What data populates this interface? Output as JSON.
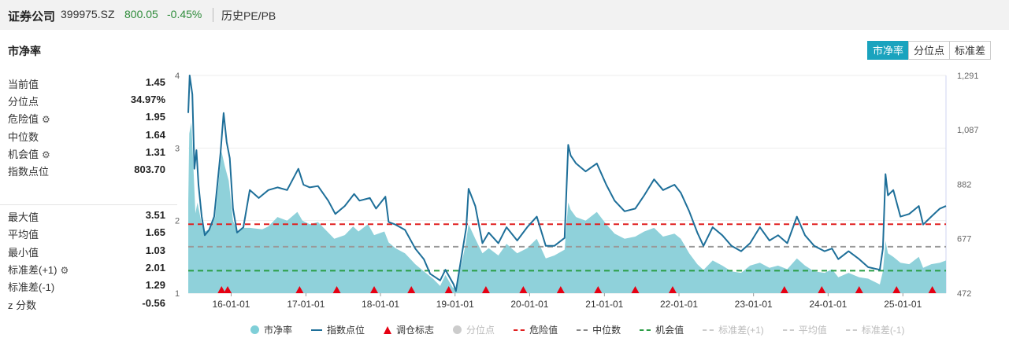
{
  "header": {
    "name": "证券公司",
    "code": "399975.SZ",
    "price": "800.05",
    "change": "-0.45%",
    "link": "历史PE/PB"
  },
  "section_title": "市净率",
  "tabs": [
    {
      "label": "市净率",
      "active": true
    },
    {
      "label": "分位点",
      "active": false
    },
    {
      "label": "标准差",
      "active": false
    }
  ],
  "stats_top": [
    {
      "label": "当前值",
      "value": "1.45",
      "gear": false
    },
    {
      "label": "分位点",
      "value": "34.97%",
      "gear": false
    },
    {
      "label": "危险值",
      "value": "1.95",
      "gear": true
    },
    {
      "label": "中位数",
      "value": "1.64",
      "gear": false
    },
    {
      "label": "机会值",
      "value": "1.31",
      "gear": true
    },
    {
      "label": "指数点位",
      "value": "803.70",
      "gear": false
    }
  ],
  "stats_bottom": [
    {
      "label": "最大值",
      "value": "3.51",
      "gear": false
    },
    {
      "label": "平均值",
      "value": "1.65",
      "gear": false
    },
    {
      "label": "最小值",
      "value": "1.03",
      "gear": false
    },
    {
      "label": "标准差(+1)",
      "value": "2.01",
      "gear": true
    },
    {
      "label": "标准差(-1)",
      "value": "1.29",
      "gear": false
    },
    {
      "label": "z 分数",
      "value": "-0.56",
      "gear": false
    }
  ],
  "colors": {
    "pb_fill": "#8fd1da",
    "index_line": "#1e6f99",
    "danger": "#e02020",
    "median": "#999999",
    "opportunity": "#2a9d45",
    "marker": "#e60012",
    "accent": "#1aa3be",
    "green_text": "#2e8b3a"
  },
  "chart_data": {
    "type": "line",
    "x_ticks": [
      "16-01-01",
      "17-01-01",
      "18-01-01",
      "19-01-01",
      "20-01-01",
      "21-01-01",
      "22-01-01",
      "23-01-01",
      "24-01-01",
      "25-01-01"
    ],
    "y_left_ticks": [
      "1",
      "2",
      "3",
      "4"
    ],
    "y_left_range": [
      1,
      4
    ],
    "y_right_ticks": [
      "472",
      "677",
      "882",
      "1,087",
      "1,291"
    ],
    "y_right_range": [
      472,
      1291
    ],
    "x_range": [
      "2015-06-05",
      "2025-07-31"
    ],
    "reference_lines": {
      "danger": 1.95,
      "median": 1.64,
      "opportunity": 1.31
    },
    "series": [
      {
        "name": "市净率",
        "axis": "left",
        "points": [
          [
            "2015-06-05",
            2.25
          ],
          [
            "2015-06-10",
            3.2
          ],
          [
            "2015-06-20",
            3.35
          ],
          [
            "2015-07-01",
            2.7
          ],
          [
            "2015-07-10",
            2.1
          ],
          [
            "2015-07-20",
            2.25
          ],
          [
            "2015-08-10",
            1.95
          ],
          [
            "2015-08-25",
            1.85
          ],
          [
            "2015-09-15",
            1.88
          ],
          [
            "2015-10-15",
            2.05
          ],
          [
            "2015-11-15",
            2.95
          ],
          [
            "2015-12-01",
            2.75
          ],
          [
            "2015-12-20",
            2.55
          ],
          [
            "2016-01-10",
            2.0
          ],
          [
            "2016-02-01",
            1.85
          ],
          [
            "2016-03-01",
            1.9
          ],
          [
            "2016-04-01",
            1.9
          ],
          [
            "2016-06-01",
            1.88
          ],
          [
            "2016-07-01",
            1.92
          ],
          [
            "2016-08-15",
            2.05
          ],
          [
            "2016-10-01",
            2.0
          ],
          [
            "2016-11-20",
            2.12
          ],
          [
            "2016-12-15",
            2.0
          ],
          [
            "2017-01-20",
            1.95
          ],
          [
            "2017-03-01",
            1.98
          ],
          [
            "2017-04-15",
            1.85
          ],
          [
            "2017-05-20",
            1.75
          ],
          [
            "2017-07-10",
            1.8
          ],
          [
            "2017-08-20",
            1.92
          ],
          [
            "2017-09-15",
            1.85
          ],
          [
            "2017-11-01",
            1.95
          ],
          [
            "2017-12-01",
            1.8
          ],
          [
            "2018-01-20",
            1.85
          ],
          [
            "2018-02-10",
            1.7
          ],
          [
            "2018-03-15",
            1.62
          ],
          [
            "2018-05-01",
            1.55
          ],
          [
            "2018-06-20",
            1.4
          ],
          [
            "2018-08-01",
            1.3
          ],
          [
            "2018-09-15",
            1.2
          ],
          [
            "2018-10-20",
            1.1
          ],
          [
            "2018-11-15",
            1.25
          ],
          [
            "2018-12-20",
            1.08
          ],
          [
            "2019-01-05",
            1.05
          ],
          [
            "2019-02-20",
            1.65
          ],
          [
            "2019-03-08",
            1.95
          ],
          [
            "2019-04-10",
            1.75
          ],
          [
            "2019-05-15",
            1.55
          ],
          [
            "2019-06-15",
            1.62
          ],
          [
            "2019-08-01",
            1.52
          ],
          [
            "2019-09-10",
            1.68
          ],
          [
            "2019-11-01",
            1.55
          ],
          [
            "2019-12-20",
            1.62
          ],
          [
            "2020-02-05",
            1.75
          ],
          [
            "2020-03-20",
            1.48
          ],
          [
            "2020-05-01",
            1.52
          ],
          [
            "2020-06-20",
            1.6
          ],
          [
            "2020-07-08",
            2.25
          ],
          [
            "2020-07-20",
            2.15
          ],
          [
            "2020-08-15",
            2.05
          ],
          [
            "2020-10-01",
            2.0
          ],
          [
            "2020-11-25",
            2.12
          ],
          [
            "2021-01-10",
            1.95
          ],
          [
            "2021-02-20",
            1.82
          ],
          [
            "2021-04-10",
            1.75
          ],
          [
            "2021-06-01",
            1.78
          ],
          [
            "2021-07-15",
            1.85
          ],
          [
            "2021-09-01",
            1.9
          ],
          [
            "2021-10-15",
            1.78
          ],
          [
            "2021-12-10",
            1.82
          ],
          [
            "2022-01-10",
            1.75
          ],
          [
            "2022-02-20",
            1.55
          ],
          [
            "2022-04-01",
            1.4
          ],
          [
            "2022-05-01",
            1.32
          ],
          [
            "2022-06-15",
            1.45
          ],
          [
            "2022-08-01",
            1.38
          ],
          [
            "2022-09-15",
            1.3
          ],
          [
            "2022-11-01",
            1.28
          ],
          [
            "2022-12-15",
            1.38
          ],
          [
            "2023-02-01",
            1.42
          ],
          [
            "2023-03-20",
            1.35
          ],
          [
            "2023-05-01",
            1.38
          ],
          [
            "2023-06-15",
            1.33
          ],
          [
            "2023-08-01",
            1.48
          ],
          [
            "2023-09-10",
            1.38
          ],
          [
            "2023-10-25",
            1.3
          ],
          [
            "2023-12-15",
            1.28
          ],
          [
            "2024-01-20",
            1.33
          ],
          [
            "2024-02-20",
            1.22
          ],
          [
            "2024-04-10",
            1.28
          ],
          [
            "2024-06-01",
            1.22
          ],
          [
            "2024-07-15",
            1.2
          ],
          [
            "2024-09-10",
            1.12
          ],
          [
            "2024-09-25",
            1.3
          ],
          [
            "2024-10-08",
            1.72
          ],
          [
            "2024-10-20",
            1.55
          ],
          [
            "2024-11-15",
            1.5
          ],
          [
            "2024-12-20",
            1.42
          ],
          [
            "2025-02-01",
            1.4
          ],
          [
            "2025-03-20",
            1.5
          ],
          [
            "2025-04-10",
            1.35
          ],
          [
            "2025-05-20",
            1.4
          ],
          [
            "2025-07-01",
            1.42
          ],
          [
            "2025-07-31",
            1.45
          ]
        ]
      },
      {
        "name": "指数点位",
        "axis": "right",
        "points": [
          [
            "2015-06-05",
            1150
          ],
          [
            "2015-06-12",
            1291
          ],
          [
            "2015-06-25",
            1220
          ],
          [
            "2015-07-05",
            940
          ],
          [
            "2015-07-15",
            1010
          ],
          [
            "2015-07-25",
            880
          ],
          [
            "2015-08-10",
            760
          ],
          [
            "2015-08-25",
            690
          ],
          [
            "2015-09-15",
            710
          ],
          [
            "2015-10-10",
            760
          ],
          [
            "2015-11-10",
            1000
          ],
          [
            "2015-11-25",
            1150
          ],
          [
            "2015-12-10",
            1040
          ],
          [
            "2015-12-25",
            980
          ],
          [
            "2016-01-10",
            790
          ],
          [
            "2016-01-30",
            700
          ],
          [
            "2016-03-01",
            720
          ],
          [
            "2016-04-01",
            860
          ],
          [
            "2016-05-15",
            830
          ],
          [
            "2016-07-01",
            860
          ],
          [
            "2016-08-15",
            870
          ],
          [
            "2016-10-01",
            860
          ],
          [
            "2016-11-25",
            940
          ],
          [
            "2016-12-20",
            880
          ],
          [
            "2017-01-20",
            870
          ],
          [
            "2017-03-01",
            875
          ],
          [
            "2017-04-20",
            820
          ],
          [
            "2017-05-25",
            770
          ],
          [
            "2017-07-10",
            800
          ],
          [
            "2017-08-25",
            845
          ],
          [
            "2017-09-20",
            820
          ],
          [
            "2017-11-10",
            830
          ],
          [
            "2017-12-10",
            790
          ],
          [
            "2018-01-25",
            835
          ],
          [
            "2018-02-10",
            740
          ],
          [
            "2018-03-15",
            730
          ],
          [
            "2018-05-01",
            710
          ],
          [
            "2018-06-20",
            640
          ],
          [
            "2018-08-01",
            600
          ],
          [
            "2018-09-01",
            545
          ],
          [
            "2018-10-20",
            520
          ],
          [
            "2018-11-15",
            560
          ],
          [
            "2018-12-25",
            505
          ],
          [
            "2019-01-05",
            480
          ],
          [
            "2019-02-25",
            720
          ],
          [
            "2019-03-08",
            865
          ],
          [
            "2019-04-10",
            800
          ],
          [
            "2019-05-15",
            660
          ],
          [
            "2019-06-15",
            700
          ],
          [
            "2019-08-01",
            660
          ],
          [
            "2019-09-10",
            720
          ],
          [
            "2019-11-01",
            670
          ],
          [
            "2019-12-20",
            720
          ],
          [
            "2020-02-05",
            760
          ],
          [
            "2020-03-20",
            650
          ],
          [
            "2020-05-01",
            650
          ],
          [
            "2020-06-20",
            680
          ],
          [
            "2020-07-08",
            1030
          ],
          [
            "2020-07-20",
            990
          ],
          [
            "2020-08-15",
            960
          ],
          [
            "2020-10-01",
            930
          ],
          [
            "2020-11-25",
            960
          ],
          [
            "2021-01-10",
            880
          ],
          [
            "2021-02-20",
            820
          ],
          [
            "2021-04-10",
            780
          ],
          [
            "2021-06-01",
            790
          ],
          [
            "2021-07-15",
            840
          ],
          [
            "2021-09-01",
            900
          ],
          [
            "2021-10-15",
            860
          ],
          [
            "2021-12-10",
            880
          ],
          [
            "2022-01-10",
            850
          ],
          [
            "2022-02-20",
            780
          ],
          [
            "2022-04-01",
            700
          ],
          [
            "2022-05-01",
            650
          ],
          [
            "2022-06-15",
            720
          ],
          [
            "2022-08-01",
            690
          ],
          [
            "2022-09-15",
            650
          ],
          [
            "2022-11-01",
            630
          ],
          [
            "2022-12-15",
            660
          ],
          [
            "2023-02-01",
            720
          ],
          [
            "2023-03-20",
            670
          ],
          [
            "2023-05-01",
            690
          ],
          [
            "2023-06-15",
            660
          ],
          [
            "2023-08-01",
            760
          ],
          [
            "2023-09-10",
            690
          ],
          [
            "2023-10-25",
            650
          ],
          [
            "2023-12-15",
            630
          ],
          [
            "2024-01-20",
            640
          ],
          [
            "2024-02-20",
            600
          ],
          [
            "2024-04-10",
            630
          ],
          [
            "2024-06-01",
            600
          ],
          [
            "2024-07-15",
            570
          ],
          [
            "2024-09-10",
            560
          ],
          [
            "2024-09-25",
            640
          ],
          [
            "2024-10-08",
            920
          ],
          [
            "2024-10-20",
            840
          ],
          [
            "2024-11-15",
            860
          ],
          [
            "2024-12-20",
            760
          ],
          [
            "2025-02-01",
            770
          ],
          [
            "2025-03-20",
            800
          ],
          [
            "2025-04-10",
            730
          ],
          [
            "2025-05-20",
            760
          ],
          [
            "2025-07-01",
            790
          ],
          [
            "2025-07-31",
            800
          ]
        ]
      }
    ],
    "markers": {
      "name": "调仓标志",
      "dates": [
        "2015-11-15",
        "2015-12-15",
        "2016-12-01",
        "2017-06-01",
        "2017-12-01",
        "2018-06-01",
        "2018-12-01",
        "2019-06-01",
        "2019-12-01",
        "2020-06-01",
        "2020-12-01",
        "2021-06-01",
        "2021-12-01",
        "2023-06-01",
        "2023-12-01",
        "2024-06-01",
        "2024-12-01",
        "2025-05-25"
      ]
    },
    "legend": [
      {
        "label": "市净率",
        "symbol": "circle",
        "color": "#7fcfd8",
        "muted": false
      },
      {
        "label": "指数点位",
        "symbol": "line",
        "color": "#1e6f99",
        "muted": false
      },
      {
        "label": "调仓标志",
        "symbol": "triangle",
        "color": "#e60012",
        "muted": false
      },
      {
        "label": "分位点",
        "symbol": "circle",
        "color": "#cccccc",
        "muted": true
      },
      {
        "label": "危险值",
        "symbol": "dash",
        "color": "#e02020",
        "muted": false
      },
      {
        "label": "中位数",
        "symbol": "dash",
        "color": "#888888",
        "muted": false
      },
      {
        "label": "机会值",
        "symbol": "dash",
        "color": "#2a9d45",
        "muted": false
      },
      {
        "label": "标准差(+1)",
        "symbol": "dash",
        "color": "#cccccc",
        "muted": true
      },
      {
        "label": "平均值",
        "symbol": "dash",
        "color": "#cccccc",
        "muted": true
      },
      {
        "label": "标准差(-1)",
        "symbol": "dash",
        "color": "#cccccc",
        "muted": true
      }
    ],
    "legend_position": "bottom"
  }
}
